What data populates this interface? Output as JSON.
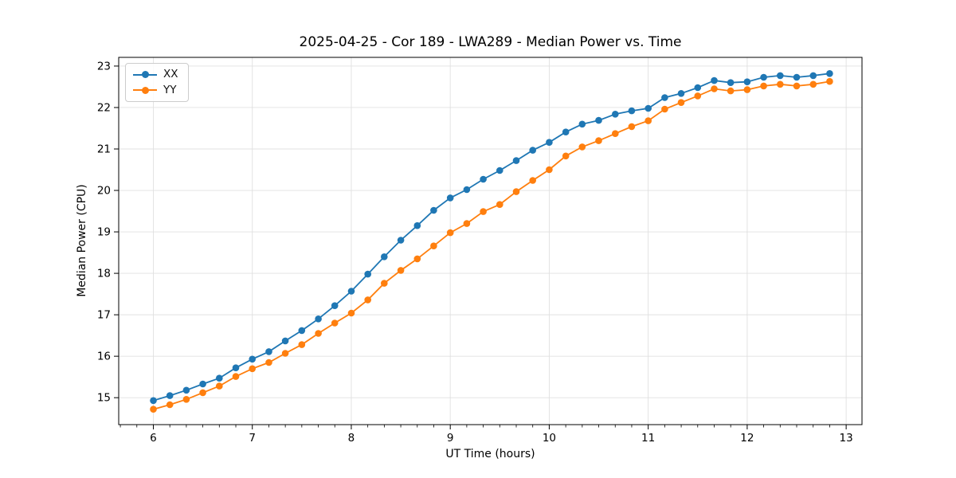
{
  "chart_data": {
    "type": "line",
    "title": "2025-04-25 - Cor 189 - LWA289 - Median Power vs. Time",
    "xlabel": "UT Time (hours)",
    "ylabel": "Median Power (CPU)",
    "xlim": [
      5.65,
      13.16
    ],
    "ylim": [
      14.35,
      23.21
    ],
    "xticks": [
      6,
      7,
      8,
      9,
      10,
      11,
      12,
      13
    ],
    "yticks": [
      15,
      16,
      17,
      18,
      19,
      20,
      21,
      22,
      23
    ],
    "x_minor_step_hours": 0.1667,
    "grid": true,
    "grid_color": "#e0e0e0",
    "legend_position": "upper-left",
    "marker": "circle",
    "x": [
      6.0,
      6.167,
      6.333,
      6.5,
      6.667,
      6.833,
      7.0,
      7.167,
      7.333,
      7.5,
      7.667,
      7.833,
      8.0,
      8.167,
      8.333,
      8.5,
      8.667,
      8.833,
      9.0,
      9.167,
      9.333,
      9.5,
      9.667,
      9.833,
      10.0,
      10.167,
      10.333,
      10.5,
      10.667,
      10.833,
      11.0,
      11.167,
      11.333,
      11.5,
      11.667,
      11.833,
      12.0,
      12.167,
      12.333,
      12.5,
      12.667,
      12.833
    ],
    "series": [
      {
        "name": "XX",
        "color": "#1f77b4",
        "values": [
          14.93,
          15.05,
          15.18,
          15.33,
          15.47,
          15.72,
          15.93,
          16.11,
          16.37,
          16.62,
          16.9,
          17.22,
          17.57,
          17.98,
          18.4,
          18.8,
          19.15,
          19.52,
          19.82,
          20.02,
          20.27,
          20.48,
          20.72,
          20.97,
          21.16,
          21.41,
          21.6,
          21.69,
          21.84,
          21.92,
          21.98,
          22.24,
          22.34,
          22.48,
          22.65,
          22.6,
          22.62,
          22.73,
          22.77,
          22.73,
          22.77,
          22.82
        ]
      },
      {
        "name": "YY",
        "color": "#ff7f0e",
        "values": [
          14.72,
          14.83,
          14.96,
          15.12,
          15.28,
          15.51,
          15.7,
          15.85,
          16.07,
          16.28,
          16.55,
          16.8,
          17.04,
          17.36,
          17.76,
          18.07,
          18.35,
          18.66,
          18.98,
          19.2,
          19.49,
          19.66,
          19.97,
          20.24,
          20.5,
          20.83,
          21.05,
          21.2,
          21.37,
          21.54,
          21.68,
          21.96,
          22.12,
          22.28,
          22.45,
          22.4,
          22.43,
          22.52,
          22.56,
          22.52,
          22.56,
          22.63
        ]
      }
    ]
  }
}
